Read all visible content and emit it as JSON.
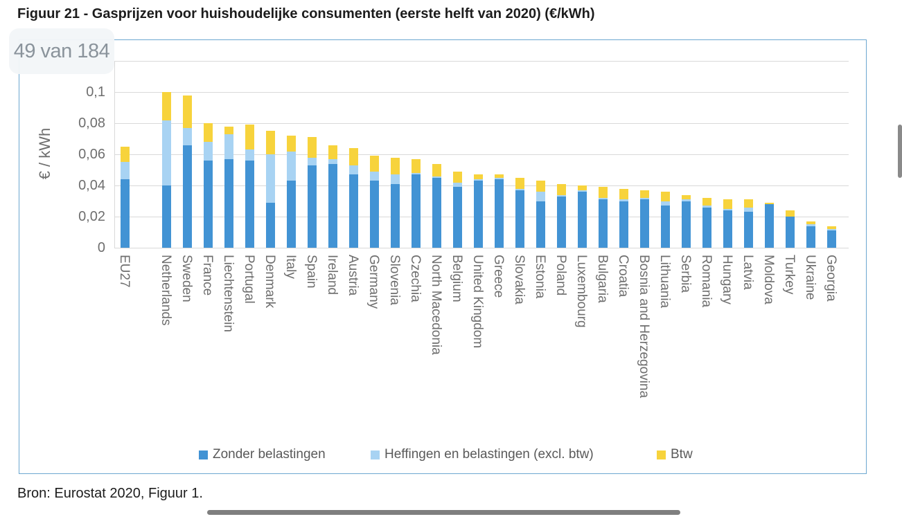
{
  "document": {
    "heading": "Figuur 21 - Gasprijzen voor huishoudelijke consumenten (eerste helft van 2020) (€/kWh)",
    "page_indicator": "49 van 184",
    "source_note": "Bron: Eurostat 2020, Figuur 1."
  },
  "colors": {
    "zonder": "#4293d4",
    "heffingen": "#a8d3f3",
    "btw": "#f7d33c",
    "gridline": "#d9d9d9",
    "axis_text": "#6e6e6e",
    "chart_border": "#6ba7d0",
    "badge_bg": "#f2f6f8",
    "badge_text": "#8a939b",
    "scrollbar": "#7f7f7f"
  },
  "chart_data": {
    "type": "bar",
    "stacked": true,
    "title": "Figuur 21 - Gasprijzen voor huishoudelijke consumenten (eerste helft van 2020) (€/kWh)",
    "xlabel": "",
    "ylabel": "€ / kWh",
    "ylim": [
      0,
      0.12
    ],
    "ytick_step": 0.02,
    "yticks_labeled": [
      "0",
      "0,02",
      "0,04",
      "0,06",
      "0,08",
      "0,1"
    ],
    "decimal_separator": ",",
    "grid": true,
    "legend_position": "bottom",
    "gap_after_index": 0,
    "categories": [
      "EU27",
      "Netherlands",
      "Sweden",
      "France",
      "Liechtenstein",
      "Portugal",
      "Denmark",
      "Italy",
      "Spain",
      "Ireland",
      "Austria",
      "Germany",
      "Slovenia",
      "Czechia",
      "North Macedonia",
      "Belgium",
      "United Kingdom",
      "Greece",
      "Slovakia",
      "Estonia",
      "Poland",
      "Luxembourg",
      "Bulgaria",
      "Croatia",
      "Bosnia and Herzegovina",
      "Lithuania",
      "Serbia",
      "Romania",
      "Hungary",
      "Latvia",
      "Moldova",
      "Turkey",
      "Ukraine",
      "Georgia"
    ],
    "series": [
      {
        "name": "Zonder belastingen",
        "color_key": "zonder",
        "values": [
          0.044,
          0.04,
          0.066,
          0.056,
          0.057,
          0.056,
          0.029,
          0.043,
          0.053,
          0.054,
          0.047,
          0.043,
          0.041,
          0.047,
          0.045,
          0.039,
          0.043,
          0.044,
          0.037,
          0.03,
          0.033,
          0.036,
          0.031,
          0.03,
          0.031,
          0.027,
          0.03,
          0.026,
          0.024,
          0.023,
          0.028,
          0.02,
          0.014,
          0.011
        ]
      },
      {
        "name": "Heffingen en belastingen (excl. btw)",
        "color_key": "heffingen",
        "values": [
          0.011,
          0.042,
          0.011,
          0.012,
          0.016,
          0.007,
          0.031,
          0.019,
          0.005,
          0.003,
          0.006,
          0.006,
          0.006,
          0.001,
          0.001,
          0.003,
          0.001,
          0.001,
          0.001,
          0.006,
          0.001,
          0.001,
          0.001,
          0.001,
          0.001,
          0.003,
          0.001,
          0.001,
          0.001,
          0.003,
          0.0,
          0.0,
          0.001,
          0.001
        ]
      },
      {
        "name": "Btw",
        "color_key": "btw",
        "values": [
          0.01,
          0.018,
          0.021,
          0.012,
          0.005,
          0.016,
          0.015,
          0.01,
          0.013,
          0.009,
          0.011,
          0.01,
          0.011,
          0.009,
          0.008,
          0.007,
          0.003,
          0.002,
          0.007,
          0.007,
          0.007,
          0.003,
          0.007,
          0.007,
          0.005,
          0.006,
          0.003,
          0.005,
          0.006,
          0.005,
          0.001,
          0.004,
          0.002,
          0.002
        ]
      }
    ]
  }
}
